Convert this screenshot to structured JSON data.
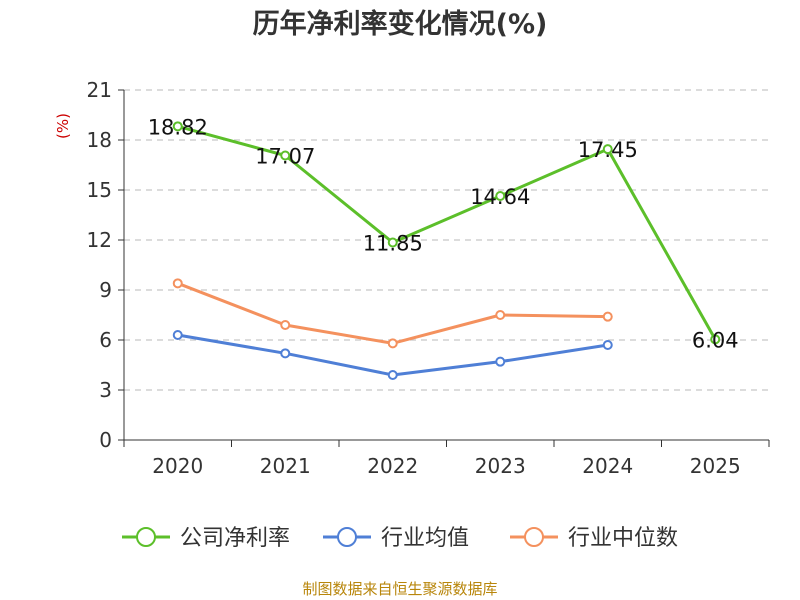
{
  "chart_data": {
    "type": "line",
    "title": "历年净利率变化情况(%)",
    "ylabel": "(%)",
    "xlabel": "",
    "categories": [
      "2020",
      "2021",
      "2022",
      "2023",
      "2024",
      "2025"
    ],
    "ylim": [
      0,
      21
    ],
    "yticks": [
      0,
      3,
      6,
      9,
      12,
      15,
      18,
      21
    ],
    "grid": true,
    "legend_position": "bottom",
    "series": [
      {
        "name": "公司净利率",
        "color": "#5cbf2a",
        "values": [
          18.82,
          17.07,
          11.85,
          14.64,
          17.45,
          6.04
        ],
        "show_labels": true
      },
      {
        "name": "行业均值",
        "color": "#4f7fd6",
        "values": [
          6.3,
          5.2,
          3.9,
          4.7,
          5.7,
          null
        ],
        "show_labels": false
      },
      {
        "name": "行业中位数",
        "color": "#f4915e",
        "values": [
          9.4,
          6.9,
          5.8,
          7.5,
          7.4,
          null
        ],
        "show_labels": false
      }
    ],
    "source": "制图数据来自恒生聚源数据库"
  }
}
